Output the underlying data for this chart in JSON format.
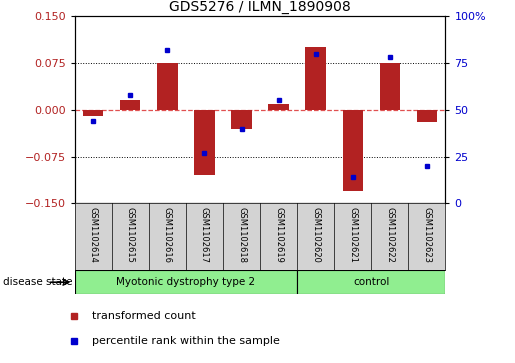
{
  "title": "GDS5276 / ILMN_1890908",
  "samples": [
    "GSM1102614",
    "GSM1102615",
    "GSM1102616",
    "GSM1102617",
    "GSM1102618",
    "GSM1102619",
    "GSM1102620",
    "GSM1102621",
    "GSM1102622",
    "GSM1102623"
  ],
  "red_values": [
    -0.01,
    0.015,
    0.075,
    -0.105,
    -0.03,
    0.01,
    0.1,
    -0.13,
    0.075,
    -0.02
  ],
  "blue_values": [
    44,
    58,
    82,
    27,
    40,
    55,
    80,
    14,
    78,
    20
  ],
  "ylim_left": [
    -0.15,
    0.15
  ],
  "ylim_right": [
    0,
    100
  ],
  "yticks_left": [
    -0.15,
    -0.075,
    0,
    0.075,
    0.15
  ],
  "yticks_right": [
    0,
    25,
    50,
    75,
    100
  ],
  "bar_color": "#B22222",
  "dot_color": "#0000CD",
  "zero_line_color": "#E05050",
  "bg_color": "#FFFFFF",
  "label_red": "transformed count",
  "label_blue": "percentile rank within the sample",
  "disease_state_label": "disease state",
  "bar_width": 0.55,
  "group1_label": "Myotonic dystrophy type 2",
  "group2_label": "control",
  "group_color": "#90EE90",
  "sample_bg": "#D3D3D3",
  "n_group1": 6,
  "n_group2": 4
}
